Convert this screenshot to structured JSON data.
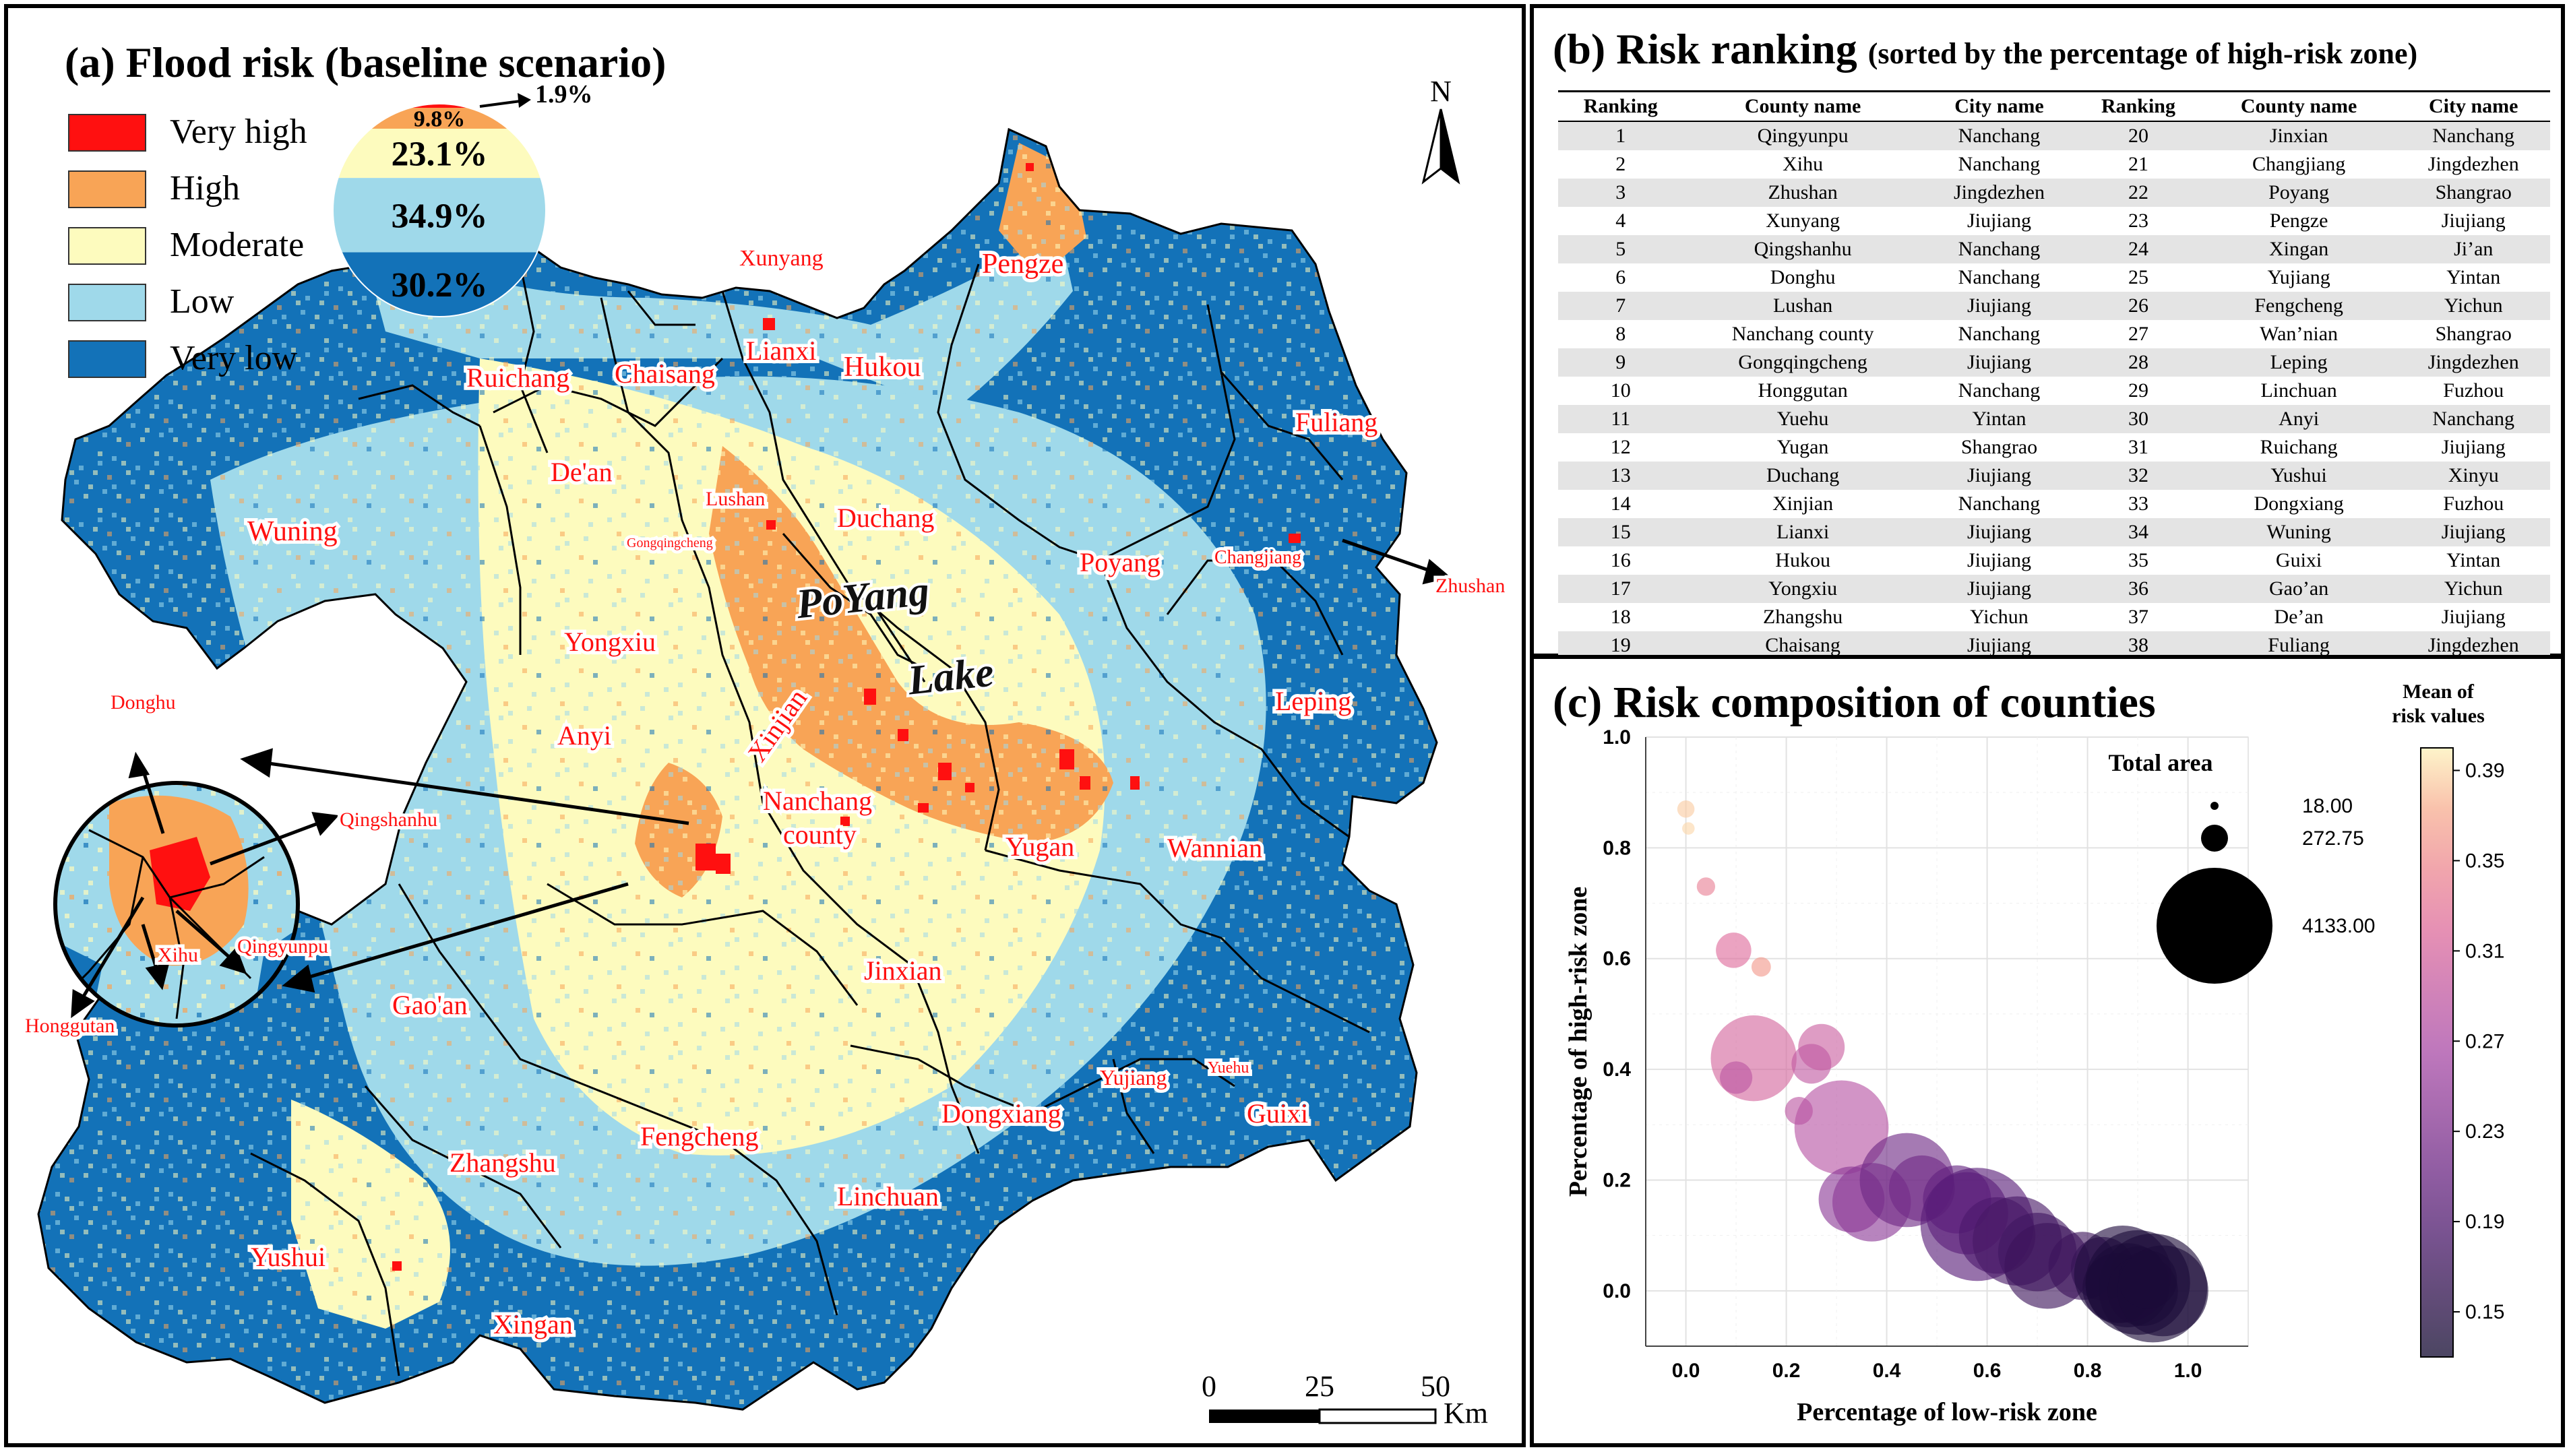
{
  "panel_a": {
    "title": "(a) Flood risk (baseline scenario)",
    "legend": [
      {
        "label": "Very high",
        "color": "#ff1010"
      },
      {
        "label": "High",
        "color": "#f8a456"
      },
      {
        "label": "Moderate",
        "color": "#fdfbbe"
      },
      {
        "label": "Low",
        "color": "#9fd9ea"
      },
      {
        "label": "Very low",
        "color": "#1372b8"
      }
    ],
    "pie": {
      "slices": [
        {
          "label": "1.9%",
          "value": 1.9,
          "color": "#ff1010"
        },
        {
          "label": "9.8%",
          "value": 9.8,
          "color": "#f8a456"
        },
        {
          "label": "23.1%",
          "value": 23.1,
          "color": "#fdfbbe"
        },
        {
          "label": "34.9%",
          "value": 34.9,
          "color": "#9fd9ea"
        },
        {
          "label": "30.2%",
          "value": 30.2,
          "color": "#1372b8"
        }
      ]
    },
    "north": "N",
    "scale": {
      "ticks": [
        "0",
        "25",
        "50"
      ],
      "unit": "Km"
    },
    "lake_label_1": "PoYang",
    "lake_label_2": "Lake",
    "labels": {
      "xunyang": "Xunyang",
      "pengze": "Pengze",
      "lianxi": "Lianxi",
      "hukou": "Hukou",
      "ruichang": "Ruichang",
      "chaisang": "Chaisang",
      "dean": "De'an",
      "lushan": "Lushan",
      "gongqingcheng": "Gongqingcheng",
      "duchang": "Duchang",
      "fuliang": "Fuliang",
      "wuning": "Wuning",
      "changjiang": "Changjiang",
      "zhushan": "Zhushan",
      "poyang": "Poyang",
      "yongxiu": "Yongxiu",
      "leping": "Leping",
      "anyi": "Anyi",
      "xinjian": "Xinjian",
      "nanchang_1": "Nanchang",
      "nanchang_2": "county",
      "yugan": "Yugan",
      "wannian": "Wannian",
      "jinxian": "Jinxian",
      "gaoan": "Gao'an",
      "yujiang": "Yujiang",
      "yuehu": "Yuehu",
      "guixi": "Guixi",
      "dongxiang": "Dongxiang",
      "fengcheng": "Fengcheng",
      "zhangshu": "Zhangshu",
      "linchuan": "Linchuan",
      "yushui": "Yushui",
      "xingan": "Xingan",
      "donghu": "Donghu",
      "qingshanhu": "Qingshanhu",
      "xihu": "Xihu",
      "qingyunpu": "Qingyunpu",
      "honggutan": "Honggutan"
    }
  },
  "panel_b": {
    "title": "(b) Risk ranking",
    "subtitle": "(sorted by the percentage of high-risk zone)",
    "headers": [
      "Ranking",
      "County name",
      "City name",
      "Ranking",
      "County name",
      "City name"
    ],
    "rows": [
      [
        "1",
        "Qingyunpu",
        "Nanchang",
        "20",
        "Jinxian",
        "Nanchang"
      ],
      [
        "2",
        "Xihu",
        "Nanchang",
        "21",
        "Changjiang",
        "Jingdezhen"
      ],
      [
        "3",
        "Zhushan",
        "Jingdezhen",
        "22",
        "Poyang",
        "Shangrao"
      ],
      [
        "4",
        "Xunyang",
        "Jiujiang",
        "23",
        "Pengze",
        "Jiujiang"
      ],
      [
        "5",
        "Qingshanhu",
        "Nanchang",
        "24",
        "Xingan",
        "Ji’an"
      ],
      [
        "6",
        "Donghu",
        "Nanchang",
        "25",
        "Yujiang",
        "Yintan"
      ],
      [
        "7",
        "Lushan",
        "Jiujiang",
        "26",
        "Fengcheng",
        "Yichun"
      ],
      [
        "8",
        "Nanchang county",
        "Nanchang",
        "27",
        "Wan’nian",
        "Shangrao"
      ],
      [
        "9",
        "Gongqingcheng",
        "Jiujiang",
        "28",
        "Leping",
        "Jingdezhen"
      ],
      [
        "10",
        "Honggutan",
        "Nanchang",
        "29",
        "Linchuan",
        "Fuzhou"
      ],
      [
        "11",
        "Yuehu",
        "Yintan",
        "30",
        "Anyi",
        "Nanchang"
      ],
      [
        "12",
        "Yugan",
        "Shangrao",
        "31",
        "Ruichang",
        "Jiujiang"
      ],
      [
        "13",
        "Duchang",
        "Jiujiang",
        "32",
        "Yushui",
        "Xinyu"
      ],
      [
        "14",
        "Xinjian",
        "Nanchang",
        "33",
        "Dongxiang",
        "Fuzhou"
      ],
      [
        "15",
        "Lianxi",
        "Jiujiang",
        "34",
        "Wuning",
        "Jiujiang"
      ],
      [
        "16",
        "Hukou",
        "Jiujiang",
        "35",
        "Guixi",
        "Yintan"
      ],
      [
        "17",
        "Yongxiu",
        "Jiujiang",
        "36",
        "Gao’an",
        "Yichun"
      ],
      [
        "18",
        "Zhangshu",
        "Yichun",
        "37",
        "De’an",
        "Jiujiang"
      ],
      [
        "19",
        "Chaisang",
        "Jiujiang",
        "38",
        "Fuliang",
        "Jingdezhen"
      ]
    ]
  },
  "chart_data": {
    "type": "scatter",
    "title": "(c) Risk composition of counties",
    "xlabel": "Percentage of low-risk zone",
    "ylabel": "Percentage of high-risk zone",
    "xlim": [
      -0.08,
      1.12
    ],
    "ylim": [
      -0.1,
      1.0
    ],
    "xticks": [
      "0.0",
      "0.2",
      "0.4",
      "0.6",
      "0.8",
      "1.0"
    ],
    "yticks": [
      "0.0",
      "0.2",
      "0.4",
      "0.6",
      "0.8",
      "1.0"
    ],
    "grid": true,
    "size_legend_title": "Total area",
    "size_legend": [
      {
        "label": "18.00",
        "value": 18
      },
      {
        "label": "272.75",
        "value": 272.75
      },
      {
        "label": "4133.00",
        "value": 4133
      }
    ],
    "colorbar_title_1": "Mean of",
    "colorbar_title_2": "risk values",
    "colorbar_range": [
      0.13,
      0.4
    ],
    "colorbar_ticks": [
      "0.39",
      "0.35",
      "0.31",
      "0.27",
      "0.23",
      "0.19",
      "0.15"
    ],
    "points": [
      {
        "x": 0.0,
        "y": 0.87,
        "area": 50,
        "risk": 0.385
      },
      {
        "x": 0.005,
        "y": 0.835,
        "area": 18,
        "risk": 0.39
      },
      {
        "x": 0.04,
        "y": 0.73,
        "area": 60,
        "risk": 0.34
      },
      {
        "x": 0.15,
        "y": 0.585,
        "area": 70,
        "risk": 0.36
      },
      {
        "x": 0.095,
        "y": 0.615,
        "area": 320,
        "risk": 0.32
      },
      {
        "x": 0.135,
        "y": 0.42,
        "area": 2300,
        "risk": 0.31
      },
      {
        "x": 0.27,
        "y": 0.44,
        "area": 600,
        "risk": 0.3
      },
      {
        "x": 0.25,
        "y": 0.41,
        "area": 420,
        "risk": 0.29
      },
      {
        "x": 0.1,
        "y": 0.385,
        "area": 260,
        "risk": 0.285
      },
      {
        "x": 0.225,
        "y": 0.325,
        "area": 180,
        "risk": 0.285
      },
      {
        "x": 0.31,
        "y": 0.295,
        "area": 2800,
        "risk": 0.28
      },
      {
        "x": 0.33,
        "y": 0.165,
        "area": 1300,
        "risk": 0.24
      },
      {
        "x": 0.37,
        "y": 0.16,
        "area": 1900,
        "risk": 0.24
      },
      {
        "x": 0.44,
        "y": 0.2,
        "area": 2800,
        "risk": 0.215
      },
      {
        "x": 0.47,
        "y": 0.185,
        "area": 1300,
        "risk": 0.22
      },
      {
        "x": 0.54,
        "y": 0.165,
        "area": 1400,
        "risk": 0.205
      },
      {
        "x": 0.56,
        "y": 0.14,
        "area": 2100,
        "risk": 0.2
      },
      {
        "x": 0.58,
        "y": 0.12,
        "area": 4133,
        "risk": 0.195
      },
      {
        "x": 0.62,
        "y": 0.1,
        "area": 1800,
        "risk": 0.185
      },
      {
        "x": 0.66,
        "y": 0.09,
        "area": 2500,
        "risk": 0.18
      },
      {
        "x": 0.7,
        "y": 0.07,
        "area": 1900,
        "risk": 0.175
      },
      {
        "x": 0.72,
        "y": 0.045,
        "area": 2300,
        "risk": 0.17
      },
      {
        "x": 0.79,
        "y": 0.045,
        "area": 1400,
        "risk": 0.17
      },
      {
        "x": 0.83,
        "y": 0.04,
        "area": 1200,
        "risk": 0.165
      },
      {
        "x": 0.87,
        "y": 0.03,
        "area": 3000,
        "risk": 0.145
      },
      {
        "x": 0.9,
        "y": 0.015,
        "area": 3500,
        "risk": 0.14
      },
      {
        "x": 0.93,
        "y": 0.005,
        "area": 3800,
        "risk": 0.14
      },
      {
        "x": 0.88,
        "y": 0.01,
        "area": 2200,
        "risk": 0.14
      },
      {
        "x": 0.91,
        "y": 0.0,
        "area": 1500,
        "risk": 0.14
      },
      {
        "x": 0.95,
        "y": 0.0,
        "area": 2600,
        "risk": 0.14
      },
      {
        "x": 0.86,
        "y": 0.005,
        "area": 1500,
        "risk": 0.145
      },
      {
        "x": 0.9,
        "y": 0.03,
        "area": 900,
        "risk": 0.145
      },
      {
        "x": 0.92,
        "y": 0.02,
        "area": 1000,
        "risk": 0.14
      }
    ]
  }
}
